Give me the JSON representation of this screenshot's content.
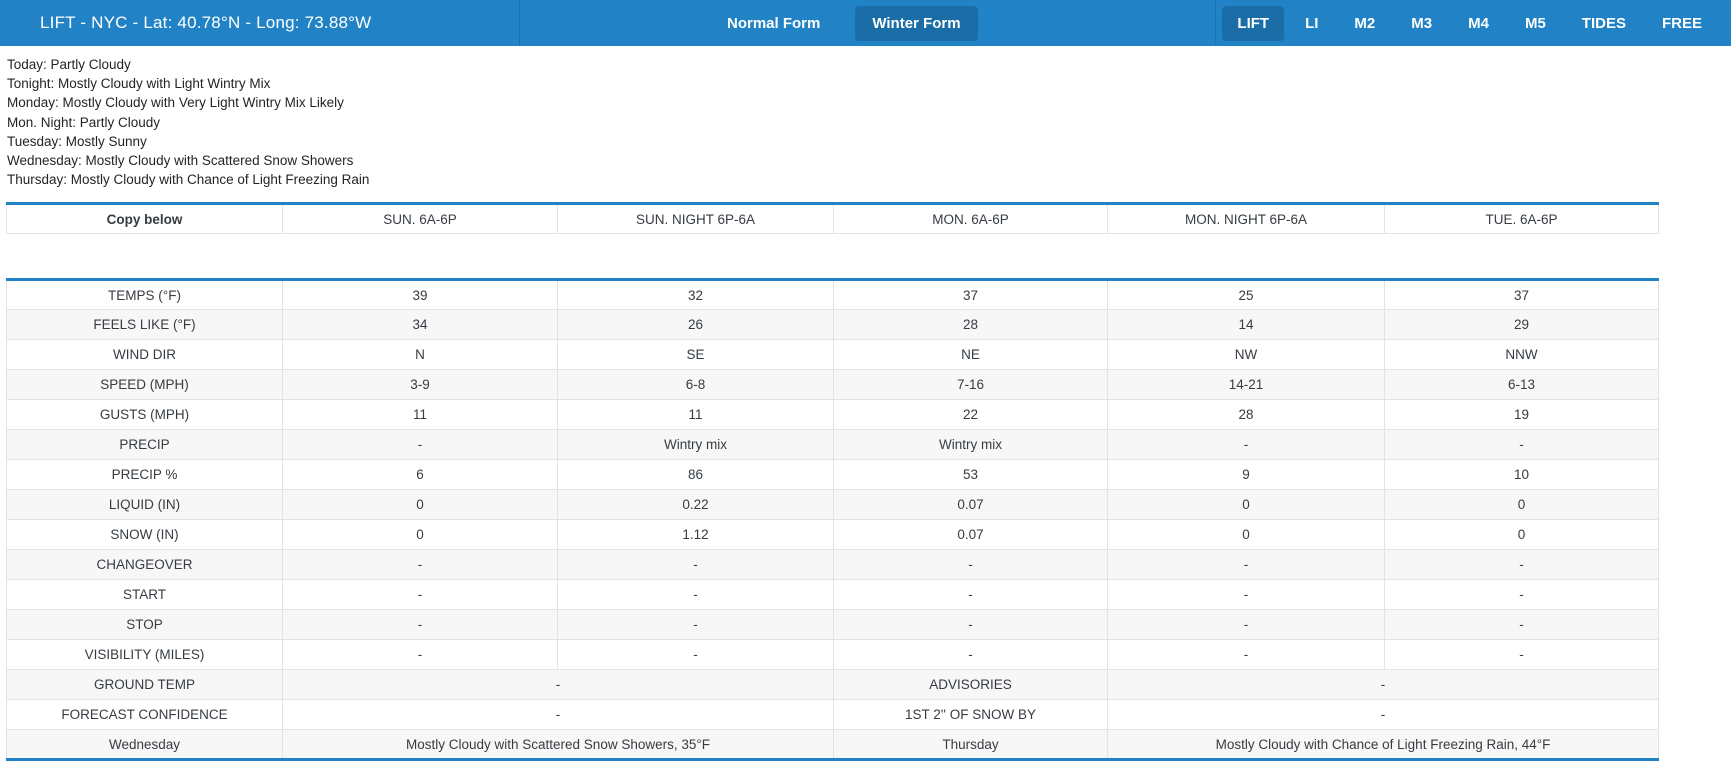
{
  "colors": {
    "navbar_blue": "#2183c5",
    "active_item_blue": "#1b6da7",
    "table_accent_blue": "#2183c5",
    "stripe_gray": "#f7f7f7",
    "border_gray": "#e3e3e3"
  },
  "navbar": {
    "brand": "LIFT - NYC - Lat: 40.78°N - Long: 73.88°W",
    "form_tabs": [
      {
        "label": "Normal Form",
        "active": false
      },
      {
        "label": "Winter Form",
        "active": true
      }
    ],
    "nav_items": [
      {
        "label": "LIFT",
        "active": true
      },
      {
        "label": "LI",
        "active": false
      },
      {
        "label": "M2",
        "active": false
      },
      {
        "label": "M3",
        "active": false
      },
      {
        "label": "M4",
        "active": false
      },
      {
        "label": "M5",
        "active": false
      },
      {
        "label": "TIDES",
        "active": false
      },
      {
        "label": "FREE",
        "active": false
      }
    ]
  },
  "forecast_summary": [
    "Today: Partly Cloudy",
    "Tonight: Mostly Cloudy with Light Wintry Mix",
    "Monday: Mostly Cloudy with Very Light Wintry Mix Likely",
    "Mon. Night: Partly Cloudy",
    "Tuesday: Mostly Sunny",
    "Wednesday: Mostly Cloudy with Scattered Snow Showers",
    "Thursday: Mostly Cloudy with Chance of Light Freezing Rain"
  ],
  "table": {
    "headers": [
      "Copy below",
      "SUN. 6A-6P",
      "SUN. NIGHT 6P-6A",
      "MON. 6A-6P",
      "MON. NIGHT 6P-6A",
      "TUE. 6A-6P"
    ],
    "rows": [
      {
        "label": "TEMPS (°F)",
        "cells": [
          {
            "text": "39"
          },
          {
            "text": "32"
          },
          {
            "text": "37"
          },
          {
            "text": "25"
          },
          {
            "text": "37"
          }
        ]
      },
      {
        "label": "FEELS LIKE (°F)",
        "cells": [
          {
            "text": "34"
          },
          {
            "text": "26"
          },
          {
            "text": "28"
          },
          {
            "text": "14"
          },
          {
            "text": "29"
          }
        ]
      },
      {
        "label": "WIND DIR",
        "cells": [
          {
            "text": "N"
          },
          {
            "text": "SE"
          },
          {
            "text": "NE"
          },
          {
            "text": "NW"
          },
          {
            "text": "NNW"
          }
        ]
      },
      {
        "label": "SPEED (MPH)",
        "cells": [
          {
            "text": "3-9"
          },
          {
            "text": "6-8"
          },
          {
            "text": "7-16"
          },
          {
            "text": "14-21"
          },
          {
            "text": "6-13"
          }
        ]
      },
      {
        "label": "GUSTS (MPH)",
        "cells": [
          {
            "text": "11"
          },
          {
            "text": "11"
          },
          {
            "text": "22"
          },
          {
            "text": "28"
          },
          {
            "text": "19"
          }
        ]
      },
      {
        "label": "PRECIP",
        "cells": [
          {
            "text": "-"
          },
          {
            "text": "Wintry mix"
          },
          {
            "text": "Wintry mix"
          },
          {
            "text": "-"
          },
          {
            "text": "-"
          }
        ]
      },
      {
        "label": "PRECIP %",
        "cells": [
          {
            "text": "6"
          },
          {
            "text": "86"
          },
          {
            "text": "53"
          },
          {
            "text": "9"
          },
          {
            "text": "10"
          }
        ]
      },
      {
        "label": "LIQUID (IN)",
        "cells": [
          {
            "text": "0"
          },
          {
            "text": "0.22"
          },
          {
            "text": "0.07"
          },
          {
            "text": "0"
          },
          {
            "text": "0"
          }
        ]
      },
      {
        "label": "SNOW (IN)",
        "cells": [
          {
            "text": "0"
          },
          {
            "text": "1.12"
          },
          {
            "text": "0.07"
          },
          {
            "text": "0"
          },
          {
            "text": "0"
          }
        ]
      },
      {
        "label": "CHANGEOVER",
        "cells": [
          {
            "text": "-"
          },
          {
            "text": "-"
          },
          {
            "text": "-"
          },
          {
            "text": "-"
          },
          {
            "text": "-"
          }
        ]
      },
      {
        "label": "START",
        "cells": [
          {
            "text": "-"
          },
          {
            "text": "-"
          },
          {
            "text": "-"
          },
          {
            "text": "-"
          },
          {
            "text": "-"
          }
        ]
      },
      {
        "label": "STOP",
        "cells": [
          {
            "text": "-"
          },
          {
            "text": "-"
          },
          {
            "text": "-"
          },
          {
            "text": "-"
          },
          {
            "text": "-"
          }
        ]
      },
      {
        "label": "VISIBILITY (MILES)",
        "cells": [
          {
            "text": "-"
          },
          {
            "text": "-"
          },
          {
            "text": "-"
          },
          {
            "text": "-"
          },
          {
            "text": "-"
          }
        ]
      },
      {
        "label": "GROUND TEMP",
        "cells": [
          {
            "text": "-",
            "span": 2
          },
          {
            "text": "ADVISORIES"
          },
          {
            "text": "-",
            "span": 2
          }
        ]
      },
      {
        "label": "FORECAST CONFIDENCE",
        "cells": [
          {
            "text": "-",
            "span": 2
          },
          {
            "text": "1ST 2'' OF SNOW BY"
          },
          {
            "text": "-",
            "span": 2
          }
        ]
      },
      {
        "label": "Wednesday",
        "cells": [
          {
            "text": "Mostly Cloudy with Scattered Snow Showers, 35°F",
            "span": 2
          },
          {
            "text": "Thursday"
          },
          {
            "text": "Mostly Cloudy with Chance of Light Freezing Rain, 44°F",
            "span": 2
          }
        ]
      }
    ]
  }
}
